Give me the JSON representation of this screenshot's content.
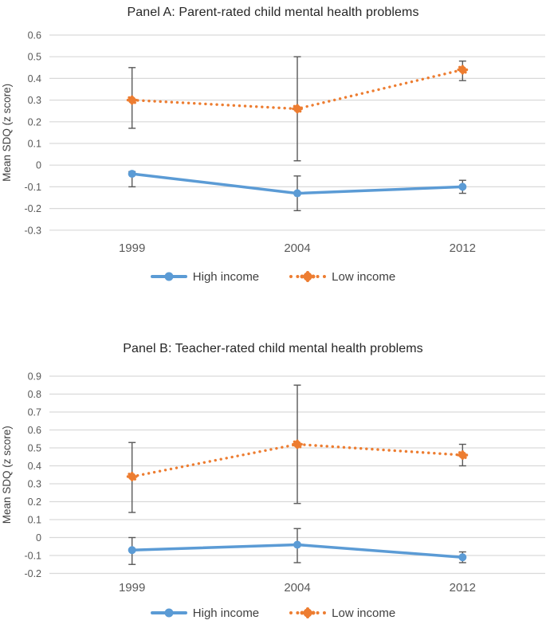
{
  "colors": {
    "high_income": "#5B9BD5",
    "low_income": "#ED7D31",
    "gridline": "#D9D9D9",
    "error_bar": "#595959",
    "tick_text": "#595959",
    "axis_title_text": "#404040",
    "title_text": "#262626",
    "legend_text": "#404040",
    "background": "#FFFFFF"
  },
  "chart_data": [
    {
      "type": "line",
      "panel": "A",
      "title": "Panel A: Parent-rated child mental health problems",
      "ylabel": "Mean SDQ (z score)",
      "xlabel": "",
      "categories": [
        "1999",
        "2004",
        "2012"
      ],
      "ylim": [
        -0.3,
        0.6
      ],
      "ytick_step": 0.1,
      "ytick_labels": [
        "0.6",
        "0.5",
        "0.4",
        "0.3",
        "0.2",
        "0.1",
        "0",
        "-0.1",
        "-0.2",
        "-0.3"
      ],
      "grid": true,
      "legend_position": "bottom",
      "error_bars": true,
      "series": [
        {
          "name": "High income",
          "color": "#5B9BD5",
          "line_style": "solid",
          "marker": "circle",
          "values": [
            -0.04,
            -0.13,
            -0.1
          ],
          "err_lo": [
            -0.1,
            -0.21,
            -0.13
          ],
          "err_hi": [
            -0.03,
            -0.05,
            -0.07
          ]
        },
        {
          "name": "Low income",
          "color": "#ED7D31",
          "line_style": "dotted",
          "marker": "dot-cluster",
          "values": [
            0.3,
            0.26,
            0.44
          ],
          "err_lo": [
            0.17,
            0.02,
            0.39
          ],
          "err_hi": [
            0.45,
            0.5,
            0.48
          ]
        }
      ]
    },
    {
      "type": "line",
      "panel": "B",
      "title": "Panel B: Teacher-rated child mental health problems",
      "ylabel": "Mean SDQ (z score)",
      "xlabel": "",
      "categories": [
        "1999",
        "2004",
        "2012"
      ],
      "ylim": [
        -0.2,
        0.9
      ],
      "ytick_step": 0.1,
      "ytick_labels": [
        "0.9",
        "0.8",
        "0.7",
        "0.6",
        "0.5",
        "0.4",
        "0.3",
        "0.2",
        "0.1",
        "0",
        "-0.1",
        "-0.2"
      ],
      "grid": true,
      "legend_position": "bottom",
      "error_bars": true,
      "series": [
        {
          "name": "High income",
          "color": "#5B9BD5",
          "line_style": "solid",
          "marker": "circle",
          "values": [
            -0.07,
            -0.04,
            -0.11
          ],
          "err_lo": [
            -0.15,
            -0.14,
            -0.14
          ],
          "err_hi": [
            0.0,
            0.05,
            -0.08
          ]
        },
        {
          "name": "Low income",
          "color": "#ED7D31",
          "line_style": "dotted",
          "marker": "dot-cluster",
          "values": [
            0.34,
            0.52,
            0.46
          ],
          "err_lo": [
            0.14,
            0.19,
            0.4
          ],
          "err_hi": [
            0.53,
            0.85,
            0.52
          ]
        }
      ]
    }
  ]
}
